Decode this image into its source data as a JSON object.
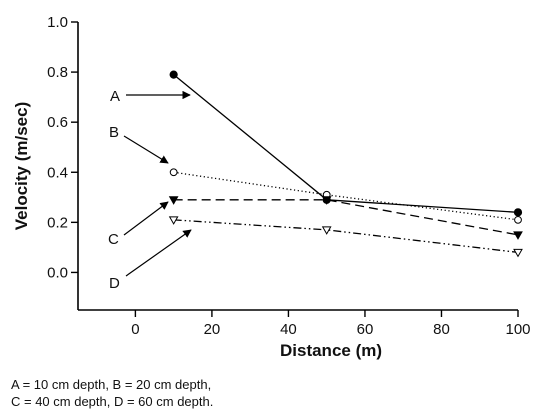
{
  "chart_data": {
    "type": "line",
    "title": "",
    "xlabel": "Distance (m)",
    "ylabel": "Velocity (m/sec)",
    "xlim": [
      -15,
      100
    ],
    "ylim": [
      -0.15,
      1.0
    ],
    "xticks": [
      0,
      20,
      40,
      60,
      80,
      100
    ],
    "yticks": [
      0.0,
      0.2,
      0.4,
      0.6,
      0.8,
      1.0
    ],
    "xtick_labels": [
      "0",
      "20",
      "40",
      "60",
      "80",
      "100"
    ],
    "ytick_labels": [
      "0.0",
      "0.2",
      "0.4",
      "0.6",
      "0.8",
      "1.0"
    ],
    "grid": false,
    "series": [
      {
        "label": "A",
        "line": "solid",
        "marker": "filled-circle",
        "color": "#000000",
        "x": [
          10,
          50,
          100
        ],
        "y": [
          0.79,
          0.29,
          0.24
        ]
      },
      {
        "label": "B",
        "line": "dotted",
        "marker": "open-circle",
        "color": "#000000",
        "x": [
          10,
          50,
          100
        ],
        "y": [
          0.4,
          0.31,
          0.21
        ]
      },
      {
        "label": "C",
        "line": "dashed",
        "marker": "filled-triangle-down",
        "color": "#000000",
        "x": [
          10,
          50,
          100
        ],
        "y": [
          0.29,
          0.29,
          0.15
        ]
      },
      {
        "label": "D",
        "line": "dash-dot",
        "marker": "open-triangle-down",
        "color": "#000000",
        "x": [
          10,
          50,
          100
        ],
        "y": [
          0.21,
          0.17,
          0.08
        ]
      }
    ]
  },
  "caption": {
    "line1": "A = 10 cm depth, B = 20 cm depth,",
    "line2": "C = 40 cm depth, D = 60 cm depth."
  }
}
